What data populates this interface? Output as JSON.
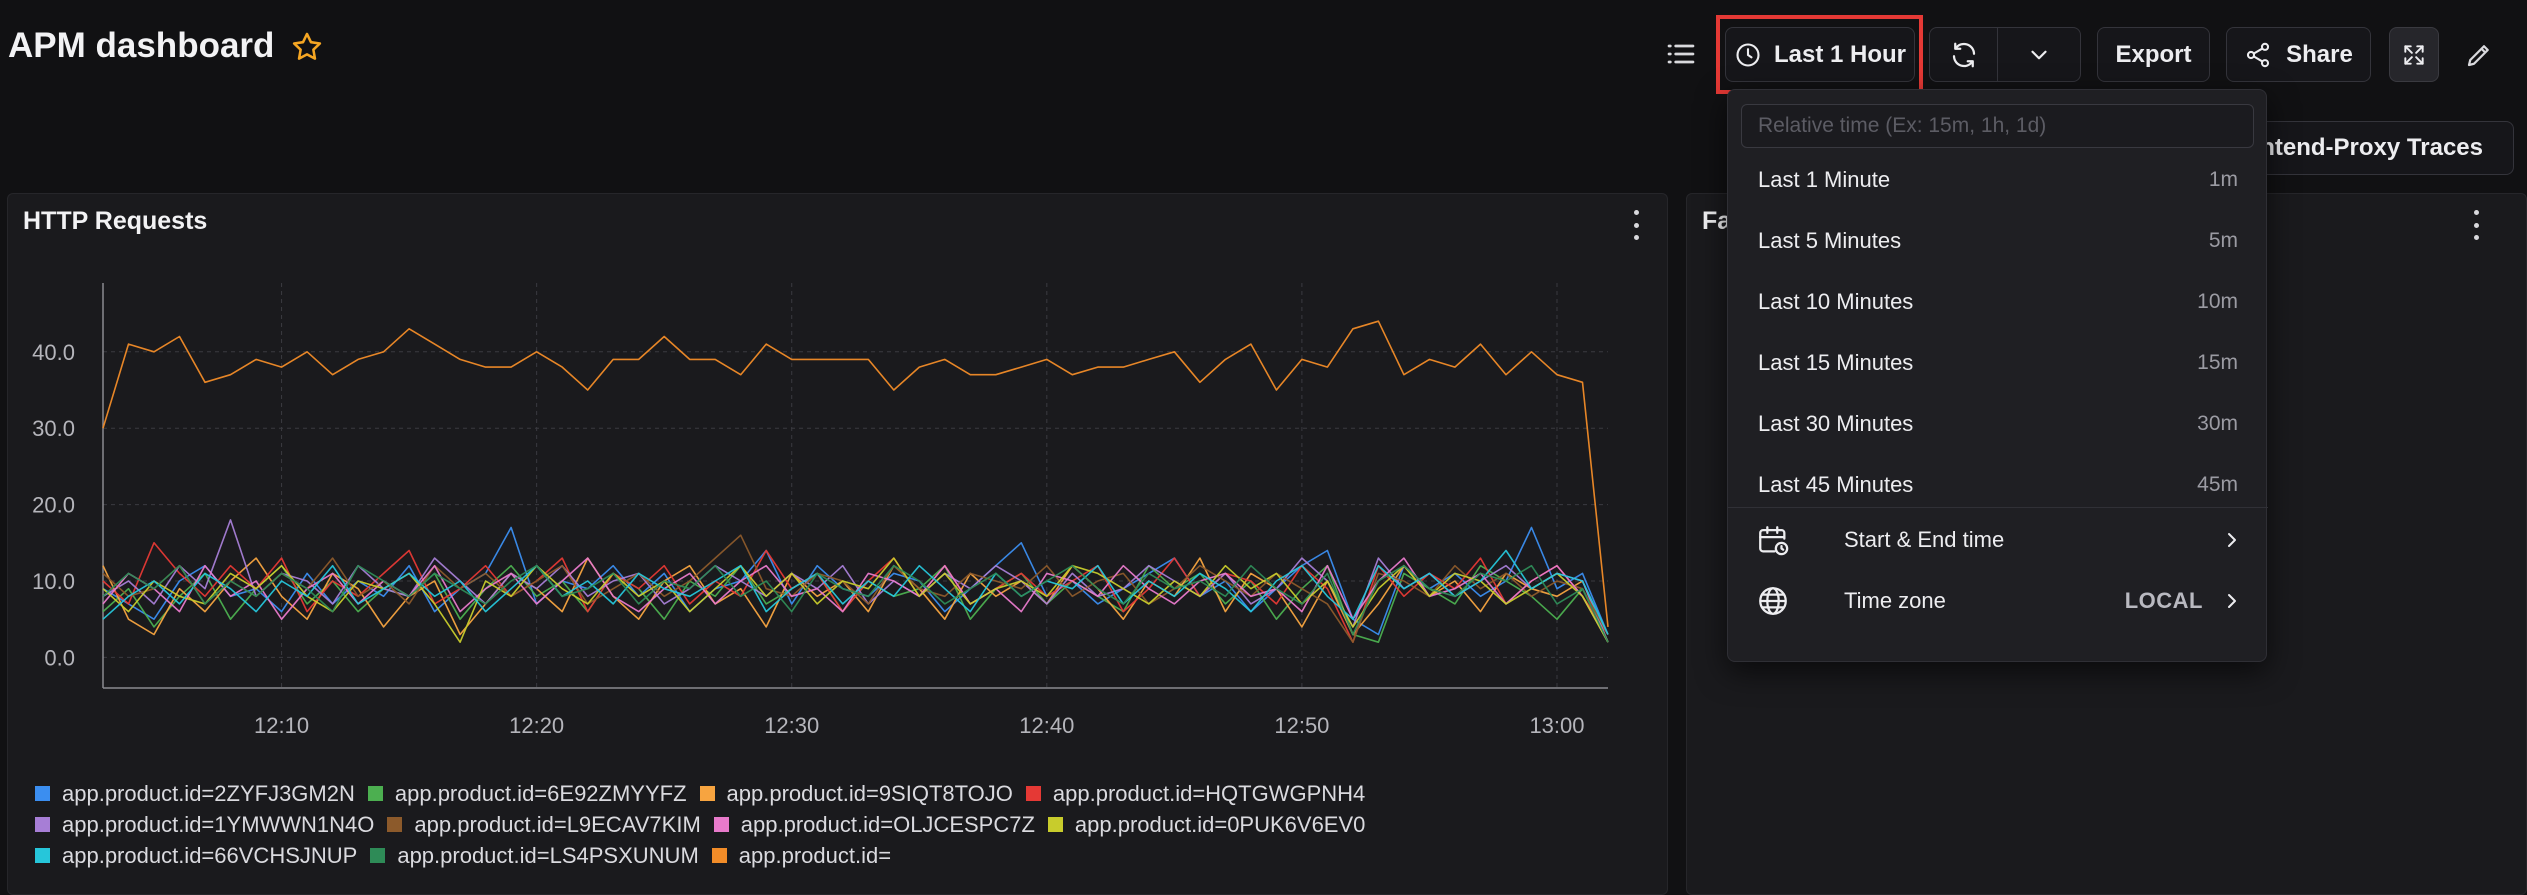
{
  "header": {
    "title": "APM dashboard",
    "time_button_label": "Last 1 Hour",
    "export_label": "Export",
    "share_label": "Share",
    "traces_button_label": "Frontend-Proxy Traces"
  },
  "time_dropdown": {
    "placeholder": "Relative time (Ex: 15m, 1h, 1d)",
    "options": [
      {
        "label": "Last 1 Minute",
        "shortcut": "1m"
      },
      {
        "label": "Last 5 Minutes",
        "shortcut": "5m"
      },
      {
        "label": "Last 10 Minutes",
        "shortcut": "10m"
      },
      {
        "label": "Last 15 Minutes",
        "shortcut": "15m"
      },
      {
        "label": "Last 30 Minutes",
        "shortcut": "30m"
      },
      {
        "label": "Last 45 Minutes",
        "shortcut": "45m"
      }
    ],
    "start_end_label": "Start & End time",
    "timezone_label": "Time zone",
    "timezone_value": "LOCAL"
  },
  "panels": {
    "left_title": "HTTP Requests",
    "right_title_partial": "Fa"
  },
  "colors": {
    "background": "#111113",
    "panel": "#1a1a1d",
    "highlight": "#e53935",
    "star": "#f5a623"
  },
  "icons": [
    "star-icon",
    "list-icon",
    "clock-icon",
    "refresh-icon",
    "chevron-down-icon",
    "share-icon",
    "fullscreen-icon",
    "edit-icon",
    "kebab-icon",
    "calendar-clock-icon",
    "globe-icon",
    "chevron-right-icon"
  ],
  "chart_data": {
    "type": "line",
    "title": "HTTP Requests",
    "xlabel": "",
    "ylabel": "",
    "x_ticks": [
      "12:10",
      "12:20",
      "12:30",
      "12:40",
      "12:50",
      "13:00"
    ],
    "y_ticks": [
      "0.0",
      "10.0",
      "20.0",
      "30.0",
      "40.0"
    ],
    "ylim": [
      -4,
      49
    ],
    "grid": true,
    "legend_position": "bottom",
    "x": [
      "12:03",
      "12:04",
      "12:05",
      "12:06",
      "12:07",
      "12:08",
      "12:09",
      "12:10",
      "12:11",
      "12:12",
      "12:13",
      "12:14",
      "12:15",
      "12:16",
      "12:17",
      "12:18",
      "12:19",
      "12:20",
      "12:21",
      "12:22",
      "12:23",
      "12:24",
      "12:25",
      "12:26",
      "12:27",
      "12:28",
      "12:29",
      "12:30",
      "12:31",
      "12:32",
      "12:33",
      "12:34",
      "12:35",
      "12:36",
      "12:37",
      "12:38",
      "12:39",
      "12:40",
      "12:41",
      "12:42",
      "12:43",
      "12:44",
      "12:45",
      "12:46",
      "12:47",
      "12:48",
      "12:49",
      "12:50",
      "12:51",
      "12:52",
      "12:53",
      "12:54",
      "12:55",
      "12:56",
      "12:57",
      "12:58",
      "12:59",
      "13:00",
      "13:01",
      "13:02"
    ],
    "series": [
      {
        "name": "app.product.id=2ZYFJ3GM2N",
        "color": "#3b8ef0",
        "values": [
          9,
          7,
          5,
          10,
          12,
          8,
          9,
          6,
          11,
          7,
          10,
          8,
          12,
          6,
          9,
          11,
          17,
          7,
          10,
          9,
          12,
          8,
          11,
          6,
          9,
          10,
          14,
          7,
          12,
          9,
          8,
          11,
          10,
          6,
          9,
          12,
          15,
          8,
          10,
          7,
          9,
          11,
          13,
          8,
          10,
          6,
          9,
          12,
          14,
          5,
          3,
          12,
          9,
          11,
          8,
          10,
          17,
          9,
          11,
          3
        ]
      },
      {
        "name": "app.product.id=6E92ZMYYFZ",
        "color": "#4caf50",
        "values": [
          6,
          9,
          4,
          8,
          11,
          5,
          9,
          12,
          7,
          10,
          6,
          9,
          8,
          11,
          5,
          9,
          12,
          8,
          10,
          6,
          11,
          9,
          5,
          10,
          8,
          12,
          7,
          9,
          11,
          6,
          10,
          8,
          9,
          12,
          5,
          9,
          11,
          7,
          10,
          8,
          6,
          12,
          9,
          11,
          7,
          10,
          5,
          9,
          12,
          3,
          2,
          11,
          9,
          7,
          12,
          10,
          8,
          5,
          9,
          2
        ]
      },
      {
        "name": "app.product.id=9SIQT8TOJO",
        "color": "#f7a440",
        "values": [
          12,
          5,
          3,
          9,
          6,
          10,
          13,
          8,
          5,
          11,
          9,
          4,
          8,
          10,
          3,
          7,
          11,
          9,
          6,
          13,
          8,
          5,
          10,
          12,
          7,
          9,
          4,
          11,
          8,
          10,
          6,
          12,
          9,
          5,
          11,
          8,
          10,
          7,
          12,
          9,
          5,
          10,
          8,
          13,
          6,
          11,
          9,
          4,
          10,
          3,
          7,
          12,
          8,
          10,
          6,
          11,
          9,
          8,
          10,
          2
        ]
      },
      {
        "name": "app.product.id=HQTGWGPNH4",
        "color": "#e53935",
        "values": [
          10,
          7,
          15,
          11,
          8,
          12,
          9,
          13,
          6,
          10,
          8,
          11,
          14,
          7,
          9,
          12,
          8,
          10,
          13,
          6,
          11,
          9,
          12,
          7,
          10,
          8,
          14,
          9,
          11,
          6,
          10,
          13,
          8,
          12,
          7,
          9,
          11,
          8,
          10,
          12,
          6,
          9,
          13,
          8,
          11,
          10,
          7,
          12,
          9,
          2,
          12,
          8,
          11,
          9,
          13,
          7,
          10,
          12,
          8,
          3
        ]
      },
      {
        "name": "app.product.id=1YMWWN1N4O",
        "color": "#a77ed6",
        "values": [
          8,
          10,
          7,
          12,
          9,
          18,
          8,
          11,
          10,
          7,
          12,
          9,
          8,
          13,
          10,
          7,
          11,
          9,
          12,
          8,
          10,
          11,
          7,
          9,
          12,
          10,
          8,
          11,
          9,
          12,
          7,
          10,
          8,
          11,
          9,
          12,
          10,
          7,
          11,
          8,
          9,
          12,
          10,
          8,
          11,
          7,
          9,
          13,
          10,
          4,
          13,
          9,
          11,
          8,
          10,
          12,
          9,
          11,
          10,
          2
        ]
      },
      {
        "name": "app.product.id=L9ECAV7KIM",
        "color": "#8c5a2b",
        "values": [
          11,
          8,
          9,
          12,
          7,
          10,
          8,
          11,
          9,
          13,
          8,
          10,
          7,
          12,
          9,
          11,
          8,
          10,
          12,
          7,
          9,
          11,
          8,
          10,
          13,
          16,
          9,
          8,
          11,
          10,
          7,
          12,
          9,
          8,
          11,
          10,
          9,
          12,
          8,
          10,
          11,
          7,
          9,
          12,
          10,
          8,
          11,
          9,
          7,
          2,
          11,
          10,
          8,
          12,
          9,
          11,
          8,
          10,
          9,
          3
        ]
      },
      {
        "name": "app.product.id=OLJCESPC7Z",
        "color": "#e87acb",
        "values": [
          7,
          11,
          9,
          6,
          12,
          8,
          10,
          5,
          9,
          11,
          7,
          10,
          8,
          12,
          6,
          9,
          11,
          7,
          10,
          13,
          8,
          6,
          9,
          11,
          7,
          10,
          12,
          8,
          9,
          6,
          11,
          10,
          8,
          12,
          7,
          9,
          6,
          11,
          10,
          8,
          12,
          9,
          7,
          10,
          11,
          8,
          9,
          6,
          12,
          5,
          10,
          13,
          8,
          9,
          11,
          7,
          10,
          12,
          8,
          2
        ]
      },
      {
        "name": "app.product.id=0PUK6V6EV0",
        "color": "#c8cc2c",
        "values": [
          9,
          6,
          10,
          8,
          7,
          11,
          9,
          12,
          8,
          6,
          10,
          9,
          11,
          7,
          2,
          10,
          8,
          12,
          9,
          7,
          11,
          8,
          10,
          6,
          9,
          12,
          8,
          11,
          7,
          10,
          9,
          13,
          8,
          11,
          7,
          9,
          10,
          8,
          12,
          11,
          9,
          7,
          10,
          8,
          12,
          9,
          11,
          7,
          10,
          4,
          9,
          12,
          8,
          11,
          10,
          7,
          9,
          11,
          8,
          2
        ]
      },
      {
        "name": "app.product.id=66VCHSJNUP",
        "color": "#26c6da",
        "values": [
          5,
          8,
          10,
          7,
          11,
          9,
          6,
          10,
          8,
          12,
          7,
          9,
          11,
          8,
          10,
          6,
          9,
          12,
          8,
          10,
          7,
          11,
          9,
          8,
          10,
          12,
          6,
          9,
          11,
          7,
          10,
          8,
          12,
          9,
          6,
          11,
          8,
          10,
          9,
          12,
          7,
          10,
          8,
          11,
          9,
          6,
          10,
          12,
          8,
          5,
          12,
          9,
          11,
          8,
          10,
          14,
          9,
          11,
          10,
          3
        ]
      },
      {
        "name": "app.product.id=LS4PSXUNUM",
        "color": "#2e8b57",
        "values": [
          8,
          11,
          9,
          12,
          7,
          10,
          8,
          11,
          9,
          6,
          12,
          10,
          8,
          11,
          9,
          7,
          10,
          12,
          8,
          9,
          11,
          7,
          10,
          9,
          12,
          8,
          10,
          6,
          11,
          9,
          8,
          12,
          10,
          7,
          9,
          11,
          8,
          10,
          12,
          9,
          7,
          11,
          9,
          10,
          8,
          12,
          9,
          7,
          11,
          3,
          10,
          12,
          9,
          8,
          11,
          10,
          12,
          7,
          9,
          2
        ]
      },
      {
        "name": "app.product.id=",
        "color": "#f28c28",
        "values": [
          30,
          41,
          40,
          42,
          36,
          37,
          39,
          38,
          40,
          37,
          39,
          40,
          43,
          41,
          39,
          38,
          38,
          40,
          38,
          35,
          39,
          39,
          42,
          39,
          39,
          37,
          41,
          39,
          39,
          39,
          39,
          35,
          38,
          39,
          37,
          37,
          38,
          39,
          37,
          38,
          38,
          39,
          40,
          36,
          39,
          41,
          35,
          39,
          38,
          43,
          44,
          37,
          39,
          38,
          41,
          37,
          40,
          37,
          36,
          4
        ]
      }
    ]
  }
}
